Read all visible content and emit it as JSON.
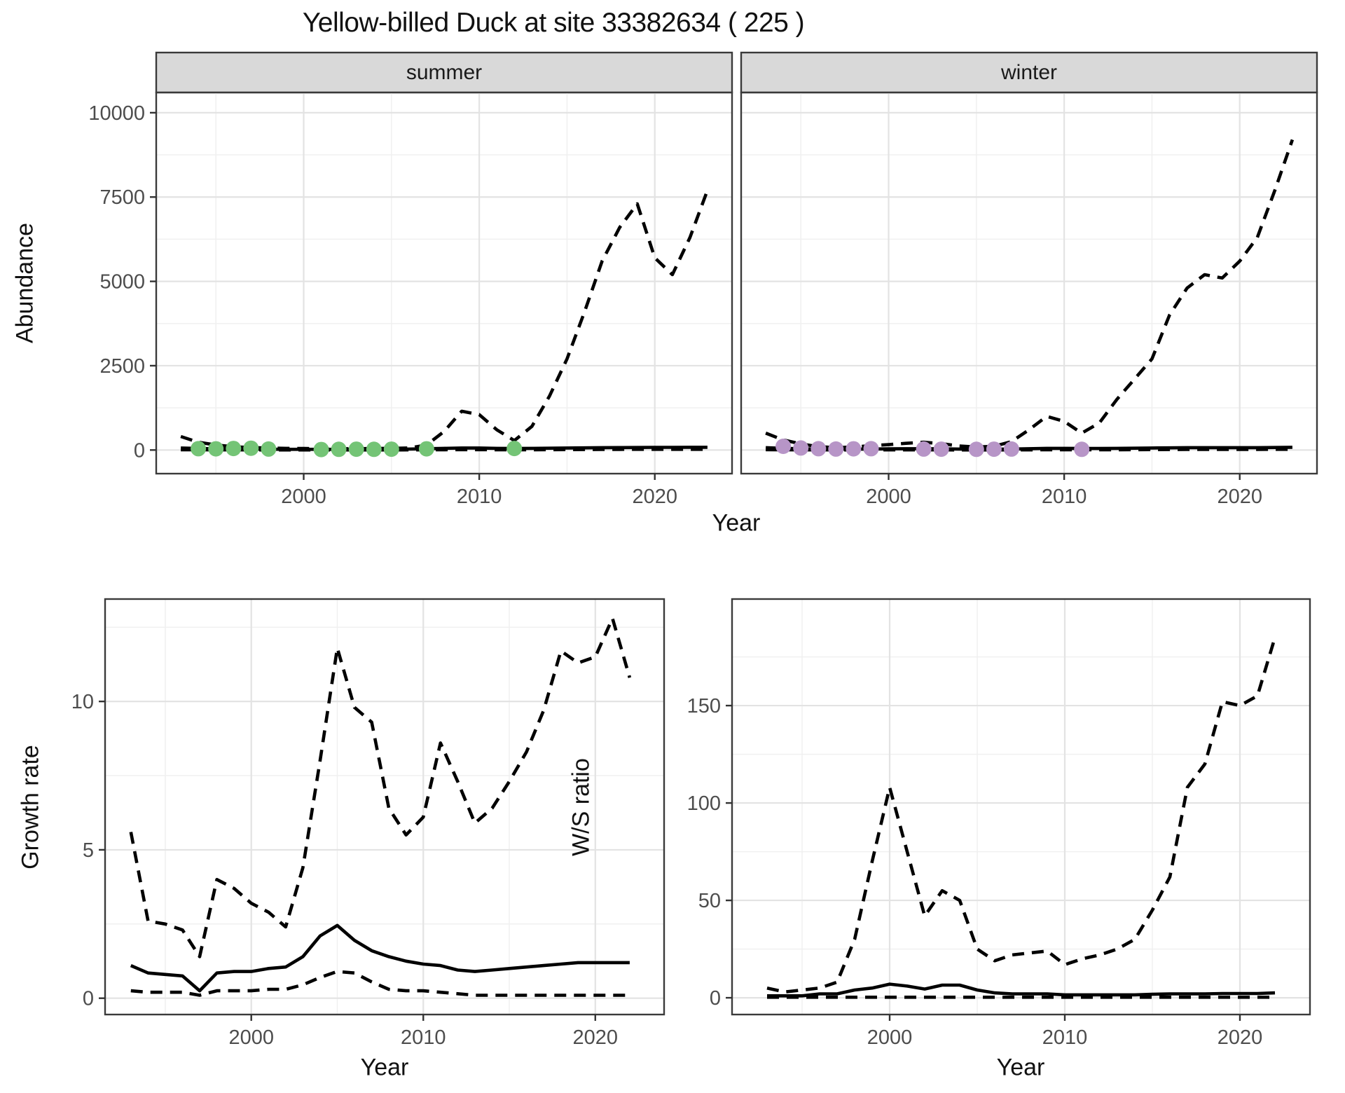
{
  "title": "Yellow-billed Duck at site 33382634 ( 225 )",
  "colors": {
    "summer_points": "#74c476",
    "winter_points": "#b795c7",
    "line": "#000000",
    "strip_background": "#d9d9d9",
    "panel_border": "#3a3a3a",
    "grid_major": "#e3e3e3",
    "grid_minor": "#f0f0f0",
    "tick_text": "#4d4d4d"
  },
  "chart_data": [
    {
      "id": "abundance",
      "type": "line",
      "xlabel": "Year",
      "ylabel": "Abundance",
      "xticks": [
        2000,
        2010,
        2020
      ],
      "yticks": [
        0,
        2500,
        5000,
        7500,
        10000
      ],
      "xlim": [
        1992,
        2024
      ],
      "ylim": [
        0,
        10000
      ],
      "grid": true,
      "legend": "none",
      "x": [
        1993,
        1994,
        1995,
        1996,
        1997,
        1998,
        1999,
        2000,
        2001,
        2002,
        2003,
        2004,
        2005,
        2006,
        2007,
        2008,
        2009,
        2010,
        2011,
        2012,
        2013,
        2014,
        2015,
        2016,
        2017,
        2018,
        2019,
        2020,
        2021,
        2022,
        2023
      ],
      "facets": [
        {
          "label": "summer",
          "point_color": "#74c476",
          "series": [
            {
              "name": "lower_ci",
              "style": "dashed",
              "values": [
                8,
                6,
                5,
                4,
                3,
                3,
                3,
                3,
                3,
                3,
                3,
                3,
                3,
                4,
                5,
                8,
                10,
                10,
                8,
                6,
                8,
                10,
                12,
                14,
                16,
                18,
                20,
                20,
                20,
                20,
                20
              ]
            },
            {
              "name": "estimate",
              "style": "solid",
              "values": [
                60,
                45,
                35,
                30,
                25,
                22,
                20,
                20,
                20,
                20,
                20,
                22,
                25,
                30,
                40,
                50,
                60,
                60,
                50,
                45,
                50,
                55,
                60,
                65,
                70,
                72,
                75,
                78,
                78,
                80,
                80
              ]
            },
            {
              "name": "upper_ci",
              "style": "dashed",
              "values": [
                400,
                230,
                150,
                100,
                70,
                60,
                50,
                45,
                40,
                40,
                40,
                45,
                50,
                60,
                150,
                550,
                1150,
                1050,
                600,
                280,
                700,
                1600,
                2700,
                4100,
                5600,
                6600,
                7300,
                5700,
                5200,
                6300,
                7700
              ]
            }
          ],
          "observed_points": {
            "x": [
              1994,
              1995,
              1996,
              1997,
              1998,
              2001,
              2002,
              2003,
              2004,
              2005,
              2007,
              2012
            ],
            "y": [
              40,
              35,
              45,
              55,
              30,
              15,
              20,
              25,
              20,
              25,
              35,
              45
            ]
          }
        },
        {
          "label": "winter",
          "point_color": "#b795c7",
          "series": [
            {
              "name": "lower_ci",
              "style": "dashed",
              "values": [
                10,
                7,
                5,
                4,
                3,
                3,
                4,
                4,
                5,
                5,
                4,
                3,
                3,
                3,
                4,
                5,
                8,
                8,
                6,
                6,
                8,
                10,
                12,
                14,
                16,
                18,
                18,
                18,
                18,
                20,
                20
              ]
            },
            {
              "name": "estimate",
              "style": "solid",
              "values": [
                70,
                50,
                40,
                30,
                25,
                25,
                30,
                35,
                40,
                40,
                35,
                30,
                25,
                25,
                30,
                40,
                50,
                50,
                45,
                45,
                50,
                55,
                60,
                65,
                70,
                70,
                70,
                70,
                70,
                75,
                80
              ]
            },
            {
              "name": "upper_ci",
              "style": "dashed",
              "values": [
                500,
                300,
                180,
                100,
                70,
                90,
                130,
                160,
                200,
                230,
                190,
                120,
                90,
                110,
                250,
                600,
                1000,
                850,
                500,
                800,
                1500,
                2100,
                2700,
                4000,
                4800,
                5200,
                5100,
                5600,
                6300,
                7700,
                9200
              ]
            }
          ],
          "observed_points": {
            "x": [
              1994,
              1995,
              1996,
              1997,
              1998,
              1999,
              2002,
              2003,
              2005,
              2006,
              2007,
              2011
            ],
            "y": [
              110,
              60,
              40,
              30,
              35,
              40,
              30,
              25,
              20,
              25,
              30,
              20
            ]
          }
        }
      ]
    },
    {
      "id": "growth_rate",
      "type": "line",
      "xlabel": "Year",
      "ylabel": "Growth rate",
      "xticks": [
        2000,
        2010,
        2020
      ],
      "yticks": [
        0,
        5,
        10
      ],
      "xlim": [
        1992,
        2024
      ],
      "ylim": [
        0,
        13.4
      ],
      "grid": true,
      "legend": "none",
      "x": [
        1993,
        1994,
        1995,
        1996,
        1997,
        1998,
        1999,
        2000,
        2001,
        2002,
        2003,
        2004,
        2005,
        2006,
        2007,
        2008,
        2009,
        2010,
        2011,
        2012,
        2013,
        2014,
        2015,
        2016,
        2017,
        2018,
        2019,
        2020,
        2021,
        2022
      ],
      "series": [
        {
          "name": "lower_ci",
          "style": "dashed",
          "values": [
            0.25,
            0.2,
            0.2,
            0.2,
            0.1,
            0.25,
            0.25,
            0.25,
            0.3,
            0.3,
            0.45,
            0.7,
            0.9,
            0.85,
            0.55,
            0.3,
            0.25,
            0.25,
            0.2,
            0.15,
            0.1,
            0.1,
            0.1,
            0.1,
            0.1,
            0.1,
            0.1,
            0.1,
            0.1,
            0.1
          ]
        },
        {
          "name": "estimate",
          "style": "solid",
          "values": [
            1.1,
            0.85,
            0.8,
            0.75,
            0.25,
            0.85,
            0.9,
            0.9,
            1.0,
            1.05,
            1.4,
            2.1,
            2.45,
            1.95,
            1.6,
            1.4,
            1.25,
            1.15,
            1.1,
            0.95,
            0.9,
            0.95,
            1.0,
            1.05,
            1.1,
            1.15,
            1.2,
            1.2,
            1.2,
            1.2
          ]
        },
        {
          "name": "upper_ci",
          "style": "dashed",
          "values": [
            5.6,
            2.6,
            2.5,
            2.3,
            1.4,
            4.0,
            3.7,
            3.2,
            2.9,
            2.4,
            4.4,
            8.0,
            11.8,
            9.8,
            9.3,
            6.4,
            5.5,
            6.1,
            8.6,
            7.3,
            5.9,
            6.4,
            7.3,
            8.3,
            9.7,
            11.7,
            11.3,
            11.5,
            12.8,
            10.8
          ]
        }
      ]
    },
    {
      "id": "ws_ratio",
      "type": "line",
      "xlabel": "Year",
      "ylabel": "W/S ratio",
      "xticks": [
        2000,
        2010,
        2020
      ],
      "yticks": [
        0,
        50,
        100,
        150
      ],
      "xlim": [
        1992,
        2024
      ],
      "ylim": [
        0,
        205
      ],
      "grid": true,
      "legend": "none",
      "x": [
        1993,
        1994,
        1995,
        1996,
        1997,
        1998,
        1999,
        2000,
        2001,
        2002,
        2003,
        2004,
        2005,
        2006,
        2007,
        2008,
        2009,
        2010,
        2011,
        2012,
        2013,
        2014,
        2015,
        2016,
        2017,
        2018,
        2019,
        2020,
        2021,
        2022
      ],
      "series": [
        {
          "name": "lower_ci",
          "style": "dashed",
          "values": [
            0.3,
            0.3,
            0.3,
            0.3,
            0.3,
            0.3,
            0.3,
            0.3,
            0.3,
            0.3,
            0.3,
            0.3,
            0.3,
            0.3,
            0.3,
            0.3,
            0.3,
            0.3,
            0.3,
            0.3,
            0.3,
            0.3,
            0.3,
            0.3,
            0.3,
            0.3,
            0.3,
            0.3,
            0.3,
            0.3
          ]
        },
        {
          "name": "estimate",
          "style": "solid",
          "values": [
            1,
            1,
            1,
            2,
            2,
            4,
            5,
            7,
            6,
            4.5,
            6.5,
            6.5,
            4,
            2.5,
            2,
            2,
            2,
            1.5,
            1.5,
            1.5,
            1.5,
            1.5,
            1.8,
            2,
            2,
            2,
            2.2,
            2.2,
            2.2,
            2.5
          ]
        },
        {
          "name": "upper_ci",
          "style": "dashed",
          "values": [
            5,
            3,
            4,
            5,
            8,
            30,
            70,
            108,
            75,
            42,
            55,
            50,
            25,
            19,
            22,
            23,
            24,
            17,
            20,
            22,
            25,
            30,
            45,
            62,
            108,
            120,
            152,
            150,
            155,
            185
          ]
        }
      ]
    }
  ]
}
